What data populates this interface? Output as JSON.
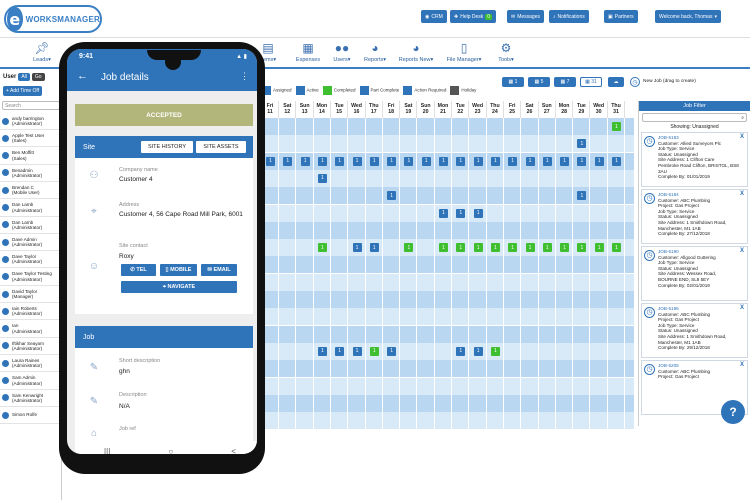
{
  "brand": {
    "logo_letter": "e",
    "logo_text": "WORKSMANAGER"
  },
  "topbar": {
    "crm": "CRM",
    "helpdesk": "Help Desk",
    "helpdesk_badge": "0",
    "messages": "Messages",
    "notifications": "Notifications",
    "partners": "Partners",
    "welcome": "Welcome back, Thomas"
  },
  "nav": [
    {
      "label": "Leads",
      "arrow": "▾",
      "icon": "pin"
    },
    {
      "label": "Items",
      "arrow": "▾",
      "icon": "doc"
    },
    {
      "label": "Expenses",
      "arrow": "",
      "icon": "calc"
    },
    {
      "label": "Users",
      "arrow": "▾",
      "icon": "users"
    },
    {
      "label": "Reports",
      "arrow": "▾",
      "icon": "pie"
    },
    {
      "label": "Reports New",
      "arrow": "▾",
      "icon": "pie"
    },
    {
      "label": "File Manager",
      "arrow": "▾",
      "icon": "pdf"
    },
    {
      "label": "Tools",
      "arrow": "▾",
      "icon": "gear"
    }
  ],
  "sidebar": {
    "user_label": "User",
    "all": "All",
    "go": "Go",
    "add_time_off": "+ Add Time Off",
    "search_placeholder": "Search",
    "users": [
      {
        "name": "andy barrington",
        "role": "(Administrator)"
      },
      {
        "name": "Apple Test User",
        "role": "(Sales)"
      },
      {
        "name": "Ben Moffitt",
        "role": "(Sales)"
      },
      {
        "name": "Benadmin",
        "role": "(Administrator)"
      },
      {
        "name": "Brendan C",
        "role": "(Mobile User)"
      },
      {
        "name": "Dan Lamb",
        "role": "(Administrator)"
      },
      {
        "name": "Dan Lamb",
        "role": "(Administrator)"
      },
      {
        "name": "Dave Admin",
        "role": "(Administrator)"
      },
      {
        "name": "Dave Taylor",
        "role": "(Administrator)"
      },
      {
        "name": "Dave Taylor Testing",
        "role": "(Administrator)"
      },
      {
        "name": "David Taylor",
        "role": "(Manager)"
      },
      {
        "name": "Iain Roberts",
        "role": "(Administrator)"
      },
      {
        "name": "Ian",
        "role": "(Administrator)"
      },
      {
        "name": "Iftikhar Seayam",
        "role": "(Administrator)"
      },
      {
        "name": "Laura Raines",
        "role": "(Administrator)"
      },
      {
        "name": "Sam Admin",
        "role": "(Administrator)"
      },
      {
        "name": "Sam Kenwright",
        "role": "(Administrator)"
      },
      {
        "name": "Simon Rolfe",
        "role": ""
      }
    ]
  },
  "calendar_toolbar": {
    "views": [
      "1",
      "5",
      "7",
      "31"
    ],
    "new_job": "New Job (drag to create)"
  },
  "legend": [
    {
      "label": "Assigned",
      "color": "#2f73b8"
    },
    {
      "label": "Active",
      "color": "#2f73b8"
    },
    {
      "label": "Completed",
      "color": "#3fbf2f"
    },
    {
      "label": "Part Complete",
      "color": "#2f73b8"
    },
    {
      "label": "Action Required",
      "color": "#2f73b8"
    },
    {
      "label": "Holiday",
      "color": "#555555"
    }
  ],
  "days": [
    {
      "d": "Fri",
      "n": "11"
    },
    {
      "d": "Sat",
      "n": "12"
    },
    {
      "d": "Sun",
      "n": "13"
    },
    {
      "d": "Mon",
      "n": "14"
    },
    {
      "d": "Tue",
      "n": "15"
    },
    {
      "d": "Wed",
      "n": "16"
    },
    {
      "d": "Thu",
      "n": "17"
    },
    {
      "d": "Fri",
      "n": "18"
    },
    {
      "d": "Sat",
      "n": "19"
    },
    {
      "d": "Sun",
      "n": "20"
    },
    {
      "d": "Mon",
      "n": "21"
    },
    {
      "d": "Tue",
      "n": "22"
    },
    {
      "d": "Wed",
      "n": "23"
    },
    {
      "d": "Thu",
      "n": "24"
    },
    {
      "d": "Fri",
      "n": "25"
    },
    {
      "d": "Sat",
      "n": "26"
    },
    {
      "d": "Sun",
      "n": "27"
    },
    {
      "d": "Mon",
      "n": "28"
    },
    {
      "d": "Tue",
      "n": "29"
    },
    {
      "d": "Wed",
      "n": "30"
    },
    {
      "d": "Thu",
      "n": "31"
    }
  ],
  "cal_rows": [
    {
      "jobs": [
        {
          "day": 20,
          "c": "gr"
        }
      ]
    },
    {
      "jobs": [
        {
          "day": 18,
          "c": "bl"
        }
      ]
    },
    {
      "jobs": [
        {
          "day": 0,
          "c": "bl"
        },
        {
          "day": 1,
          "c": "bl"
        },
        {
          "day": 2,
          "c": "bl"
        },
        {
          "day": 3,
          "c": "bl"
        },
        {
          "day": 4,
          "c": "bl"
        },
        {
          "day": 5,
          "c": "bl"
        },
        {
          "day": 6,
          "c": "bl"
        },
        {
          "day": 7,
          "c": "bl"
        },
        {
          "day": 8,
          "c": "bl"
        },
        {
          "day": 9,
          "c": "bl"
        },
        {
          "day": 10,
          "c": "bl"
        },
        {
          "day": 11,
          "c": "bl"
        },
        {
          "day": 12,
          "c": "bl"
        },
        {
          "day": 13,
          "c": "bl"
        },
        {
          "day": 14,
          "c": "bl"
        },
        {
          "day": 15,
          "c": "bl"
        },
        {
          "day": 16,
          "c": "bl"
        },
        {
          "day": 17,
          "c": "bl"
        },
        {
          "day": 18,
          "c": "bl"
        },
        {
          "day": 19,
          "c": "bl"
        },
        {
          "day": 20,
          "c": "bl"
        }
      ]
    },
    {
      "jobs": [
        {
          "day": 3,
          "c": "bl"
        }
      ]
    },
    {
      "jobs": [
        {
          "day": 7,
          "c": "bl"
        },
        {
          "day": 18,
          "c": "bl"
        }
      ]
    },
    {
      "jobs": [
        {
          "day": 10,
          "c": "bl"
        },
        {
          "day": 11,
          "c": "bl"
        },
        {
          "day": 12,
          "c": "bl"
        }
      ]
    },
    {
      "jobs": []
    },
    {
      "jobs": [
        {
          "day": 3,
          "c": "gr"
        },
        {
          "day": 5,
          "c": "bl"
        },
        {
          "day": 6,
          "c": "bl"
        },
        {
          "day": 8,
          "c": "gr"
        },
        {
          "day": 10,
          "c": "gr"
        },
        {
          "day": 11,
          "c": "gr"
        },
        {
          "day": 12,
          "c": "gr"
        },
        {
          "day": 13,
          "c": "gr"
        },
        {
          "day": 14,
          "c": "gr"
        },
        {
          "day": 15,
          "c": "gr"
        },
        {
          "day": 16,
          "c": "gr"
        },
        {
          "day": 17,
          "c": "gr"
        },
        {
          "day": 18,
          "c": "gr"
        },
        {
          "day": 19,
          "c": "gr"
        },
        {
          "day": 20,
          "c": "gr"
        }
      ]
    },
    {
      "jobs": []
    },
    {
      "jobs": []
    },
    {
      "jobs": []
    },
    {
      "jobs": []
    },
    {
      "jobs": []
    },
    {
      "jobs": [
        {
          "day": 3,
          "c": "bl"
        },
        {
          "day": 4,
          "c": "bl"
        },
        {
          "day": 5,
          "c": "bl"
        },
        {
          "day": 6,
          "c": "gr"
        },
        {
          "day": 7,
          "c": "bl"
        },
        {
          "day": 11,
          "c": "bl"
        },
        {
          "day": 12,
          "c": "bl"
        },
        {
          "day": 13,
          "c": "gr"
        }
      ]
    },
    {
      "jobs": []
    },
    {
      "jobs": []
    },
    {
      "jobs": []
    },
    {
      "jobs": []
    }
  ],
  "job_label": "1",
  "job_filter": {
    "title": "Job Filter",
    "showing": "Showing: Unassigned",
    "close": "X",
    "cards": [
      {
        "id": "JOB-5183",
        "line1": "Customer: Allied Surveyors Plc",
        "line2": "Job Type: Service",
        "line3": "Status: Unassigned",
        "line4": "Site Address: 1 Clifton Care",
        "line5": "Pembroke Road Clifton, BRISTOL, BS8",
        "line6": "3AU",
        "line7": "Complete By: 01/01/2019"
      },
      {
        "id": "JOB-5184",
        "line1": "Customer: ABC Plumbing",
        "line2": "Project: Gas Project",
        "line3": "Job Type: Service",
        "line4": "Status: Unassigned",
        "line5": "Site Address: 1 Smithdown Road,",
        "line6": "Manchester, M1 1AB",
        "line7": "Complete By: 27/12/2018"
      },
      {
        "id": "JOB-5190",
        "line1": "Customer: Allgood Guttering",
        "line2": "Job Type: Service",
        "line3": "Status: Unassigned",
        "line4": "Site Address: Wessex Road,",
        "line5": "BOURNE END, SL8 5EY",
        "line6": "",
        "line7": "Complete By: 02/01/2019"
      },
      {
        "id": "JOB-5196",
        "line1": "Customer: ABC Plumbing",
        "line2": "Project: Gas Project",
        "line3": "Job Type: Service",
        "line4": "Status: Unassigned",
        "line5": "Site Address: 1 Smithdown Road,",
        "line6": "Manchester, M1 1AB",
        "line7": "Complete By: 29/12/2018"
      },
      {
        "id": "JOB-5205",
        "line1": "Customer: ABC Plumbing",
        "line2": "Project: Gas Project",
        "line3": "",
        "line4": "",
        "line5": "",
        "line6": "",
        "line7": ""
      }
    ]
  },
  "help": "?",
  "phone": {
    "time": "9:41",
    "signal": "▲ ▮",
    "title": "Job details",
    "back": "←",
    "menu": "⋮",
    "status": "ACCEPTED",
    "site_title": "Site",
    "site_history": "SITE HISTORY",
    "site_assets": "SITE ASSETS",
    "company_label": "Company name",
    "company": "Customer 4",
    "address_label": "Address",
    "address": "Customer 4, 56 Cape Road Mill Park, 6001",
    "contact_label": "Site contact",
    "contact": "Roxy",
    "tel": "TEL",
    "mobile": "MOBILE",
    "email": "EMAIL",
    "navigate": "NAVIGATE",
    "job_title": "Job",
    "short_label": "Short description",
    "short": "ghn",
    "desc_label": "Description",
    "desc": "N/A",
    "ref_label": "Job ref",
    "nav_recent": "|||",
    "nav_home": "○",
    "nav_back": "<"
  }
}
